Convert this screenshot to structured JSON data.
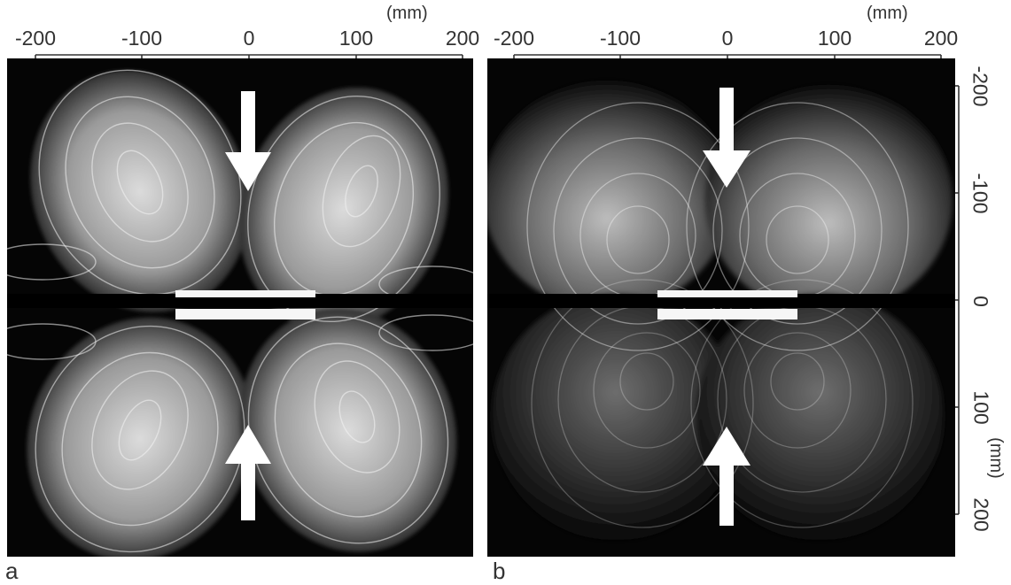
{
  "panel_a": {
    "letter": "a",
    "x_ticks": [
      "-200",
      "-100",
      "0",
      "100",
      "200"
    ],
    "x_unit": "(mm)"
  },
  "panel_b": {
    "letter": "b",
    "x_ticks": [
      "-200",
      "-100",
      "0",
      "100",
      "200"
    ],
    "x_unit": "(mm)",
    "y_ticks": [
      "-200",
      "-100",
      "0",
      "100",
      "200"
    ],
    "y_unit": "(mm)"
  },
  "colors": {
    "background": "#050505",
    "streak": "#f2f2f2",
    "arrow": "#ffffff"
  }
}
